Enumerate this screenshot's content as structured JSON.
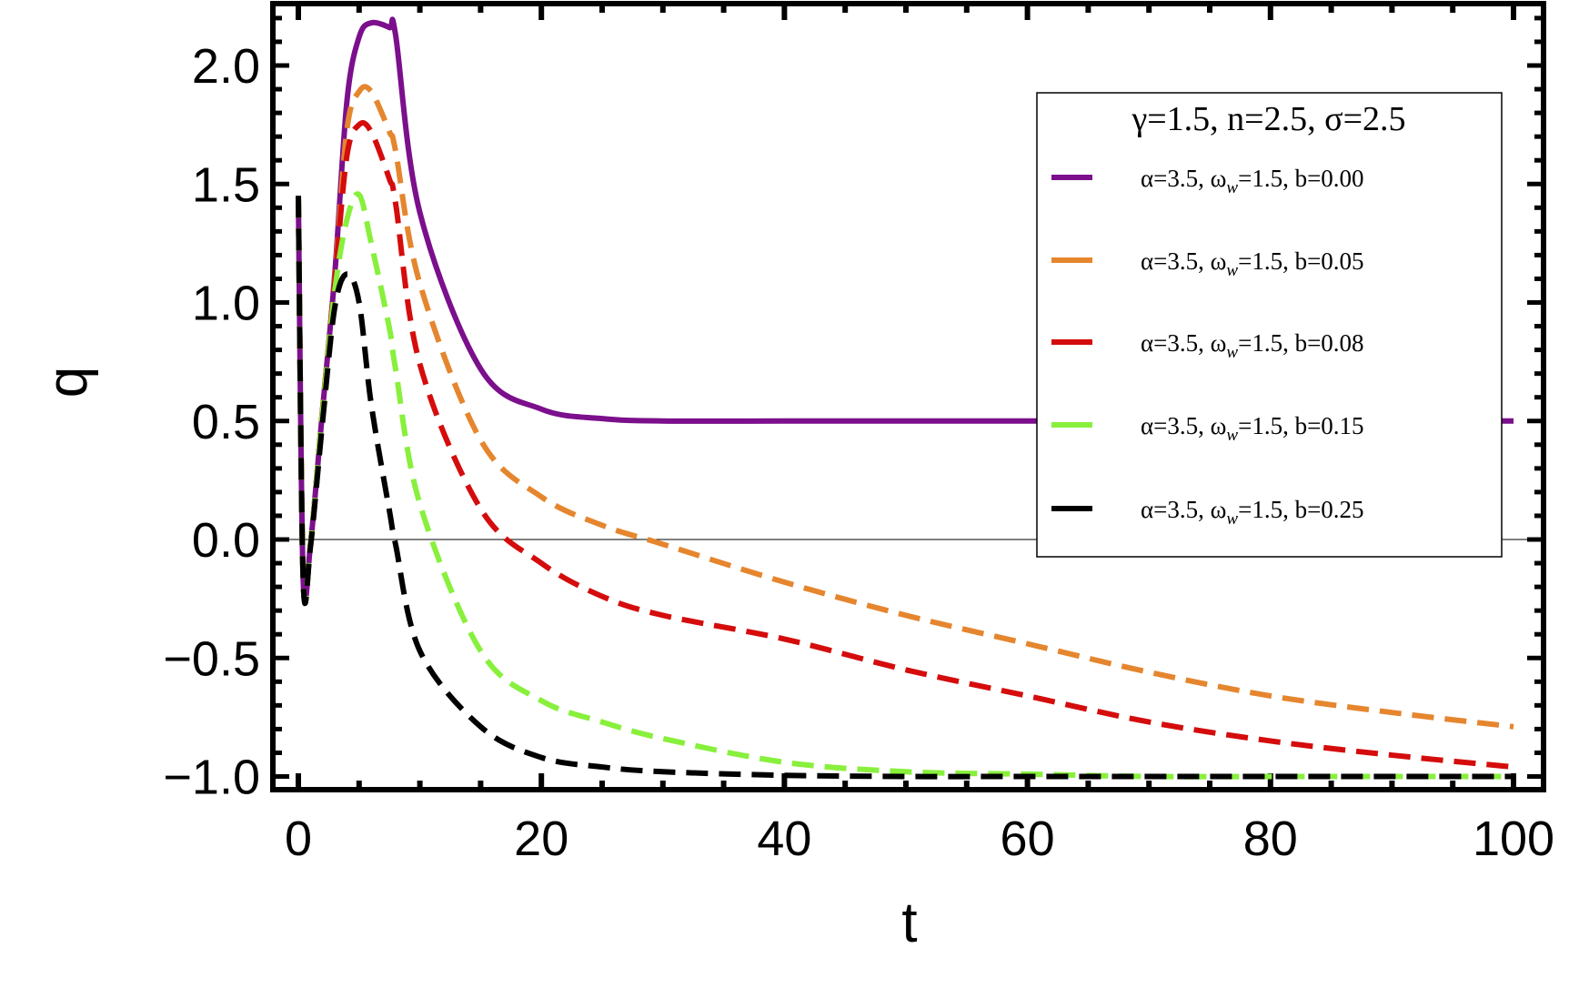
{
  "chart_data": {
    "type": "line",
    "title": "",
    "xlabel": "t",
    "ylabel": "q",
    "xlim": [
      -2,
      102.7
    ],
    "ylim": [
      -1.06,
      2.26
    ],
    "xticks": [
      0,
      20,
      40,
      60,
      80,
      100
    ],
    "xtick_labels": [
      "0",
      "20",
      "40",
      "60",
      "80",
      "100"
    ],
    "yticks": [
      -1.0,
      -0.5,
      0.0,
      0.5,
      1.0,
      1.5,
      2.0
    ],
    "ytick_labels": [
      "−1.0",
      "−0.5",
      "0.0",
      "0.5",
      "1.0",
      "1.5",
      "2.0"
    ],
    "grid": false,
    "zero_line": true,
    "legend": {
      "placement": "top-right",
      "title": "γ=1.5, n=2.5, σ=2.5"
    },
    "x": [
      0,
      0.4,
      1,
      2,
      3,
      4,
      5,
      6,
      7.5,
      8,
      10,
      15,
      20,
      25,
      30,
      40,
      50,
      60,
      70,
      80,
      90,
      100
    ],
    "series": [
      {
        "name": "α=3.5, ωw=1.5, b=0.00",
        "color": "#7b0f8c",
        "dash": "solid",
        "values": [
          1.45,
          -0.17,
          -0.02,
          0.55,
          1.12,
          1.85,
          2.12,
          2.18,
          2.16,
          2.13,
          1.38,
          0.72,
          0.55,
          0.51,
          0.5,
          0.5,
          0.5,
          0.5,
          0.5,
          0.5,
          0.5,
          0.5
        ]
      },
      {
        "name": "α=3.5, ωw=1.5, b=0.05",
        "color": "#e5862e",
        "dash": "dashed",
        "values": [
          1.45,
          -0.17,
          -0.02,
          0.55,
          1.1,
          1.73,
          1.89,
          1.89,
          1.72,
          1.64,
          1.08,
          0.42,
          0.18,
          0.06,
          -0.02,
          -0.18,
          -0.32,
          -0.44,
          -0.56,
          -0.66,
          -0.73,
          -0.79
        ]
      },
      {
        "name": "α=3.5, ωw=1.5, b=0.08",
        "color": "#d50c0c",
        "dash": "dashed",
        "values": [
          1.45,
          -0.17,
          -0.02,
          0.55,
          1.09,
          1.62,
          1.75,
          1.72,
          1.52,
          1.42,
          0.74,
          0.13,
          -0.1,
          -0.24,
          -0.32,
          -0.42,
          -0.55,
          -0.66,
          -0.77,
          -0.85,
          -0.91,
          -0.96
        ]
      },
      {
        "name": "α=3.5, ωw=1.5, b=0.15",
        "color": "#88f03c",
        "dash": "dashed",
        "values": [
          1.45,
          -0.17,
          -0.02,
          0.54,
          1.05,
          1.35,
          1.455,
          1.25,
          0.89,
          0.72,
          0.15,
          -0.47,
          -0.68,
          -0.77,
          -0.84,
          -0.94,
          -0.98,
          -0.99,
          -1.0,
          -1.0,
          -1.0,
          -1.0
        ]
      },
      {
        "name": "α=3.5, ωw=1.5, b=0.25",
        "color": "#000000",
        "dash": "dashed",
        "values": [
          1.45,
          -0.17,
          -0.03,
          0.5,
          0.98,
          1.12,
          1.0,
          0.57,
          0.12,
          -0.02,
          -0.47,
          -0.79,
          -0.92,
          -0.96,
          -0.98,
          -0.995,
          -1.0,
          -1.0,
          -1.0,
          -1.0,
          -1.0,
          -1.0
        ]
      }
    ],
    "legend_entries": [
      {
        "prefix": "α=3.5, ω",
        "sub": "w",
        "suffix": "=1.5, b=0.00"
      },
      {
        "prefix": "α=3.5, ω",
        "sub": "w",
        "suffix": "=1.5, b=0.05"
      },
      {
        "prefix": "α=3.5, ω",
        "sub": "w",
        "suffix": "=1.5, b=0.08"
      },
      {
        "prefix": "α=3.5, ω",
        "sub": "w",
        "suffix": "=1.5, b=0.15"
      },
      {
        "prefix": "α=3.5, ω",
        "sub": "w",
        "suffix": "=1.5, b=0.25"
      }
    ]
  }
}
